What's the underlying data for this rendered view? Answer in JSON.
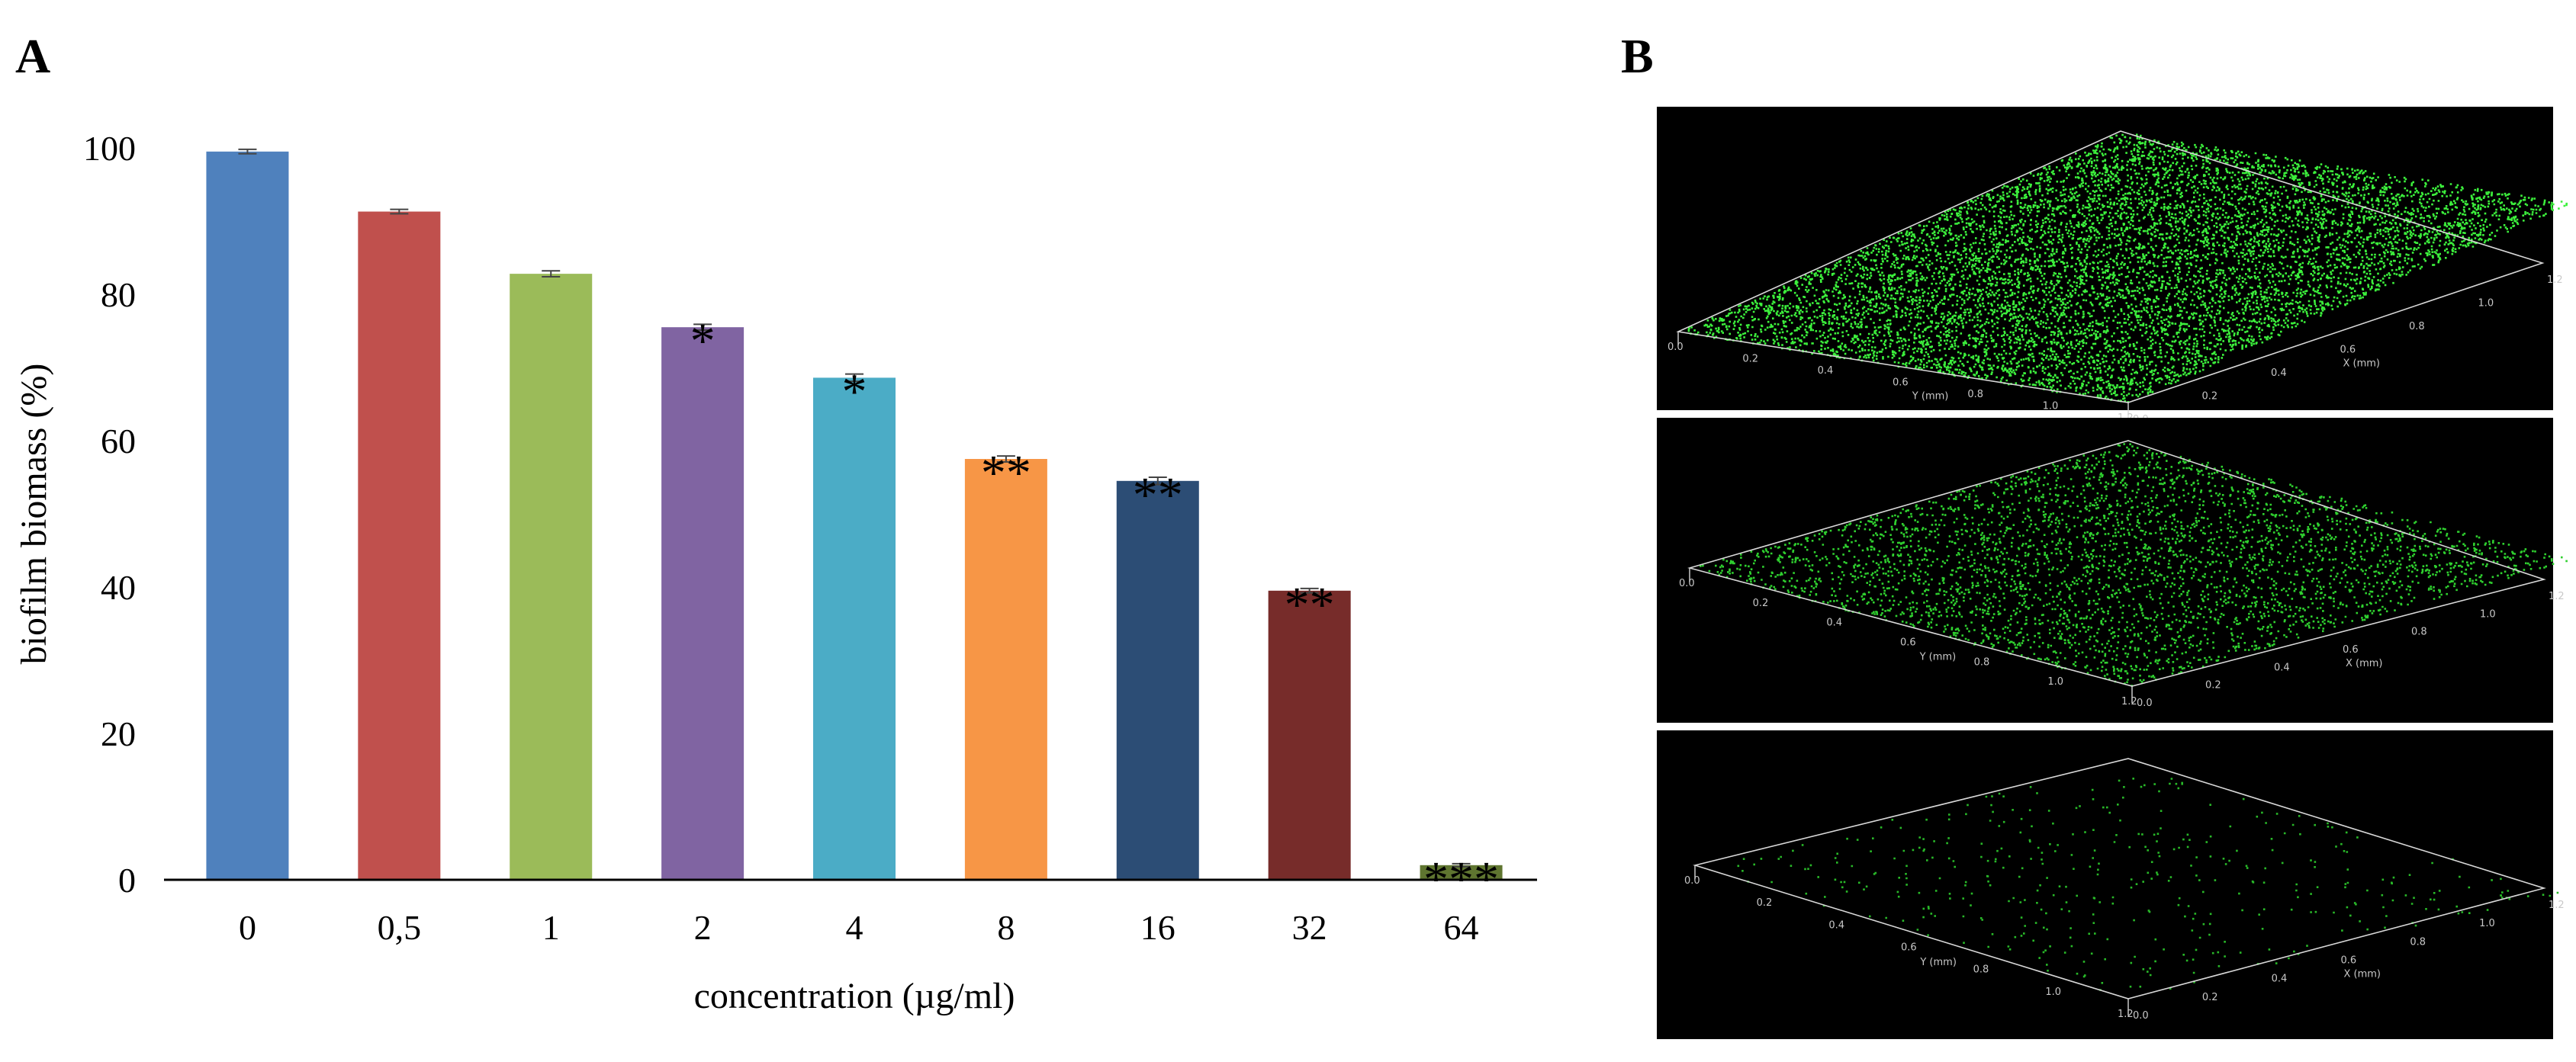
{
  "panels": {
    "a_label": "A",
    "b_label": "B"
  },
  "chart_data": {
    "type": "bar",
    "title": "",
    "xlabel": "concentration (µg/ml)",
    "ylabel": "biofilm biomass (%)",
    "ylim": [
      0,
      100
    ],
    "yticks": [
      "0",
      "20",
      "40",
      "60",
      "80",
      "100"
    ],
    "grid": false,
    "categories": [
      "0",
      "0,5",
      "1",
      "2",
      "4",
      "8",
      "16",
      "32",
      "64"
    ],
    "values": [
      99.5,
      91.3,
      82.8,
      75.5,
      68.6,
      57.5,
      54.5,
      39.5,
      2.0
    ],
    "errors": [
      0.3,
      0.3,
      0.4,
      0.4,
      0.5,
      0.4,
      0.5,
      0.3,
      0.2
    ],
    "significance": [
      "",
      "",
      "",
      "*",
      "*",
      "**",
      "**",
      "**",
      "***"
    ],
    "colors": [
      "#4f81bd",
      "#c0504d",
      "#9bbb59",
      "#8064a2",
      "#4bacc6",
      "#f79646",
      "#2c4d75",
      "#772c2a",
      "#5f7530"
    ]
  },
  "images": {
    "densities": [
      9000,
      3800,
      420
    ],
    "bright_color": "#3cf03c",
    "dim_color": "#1f8f1f",
    "x_axis_letter": "X (mm)",
    "y_axis_letter": "Y (mm)",
    "ticks": [
      "0.0",
      "0.2",
      "0.4",
      "0.6",
      "0.8",
      "1.0",
      "1.2"
    ]
  }
}
